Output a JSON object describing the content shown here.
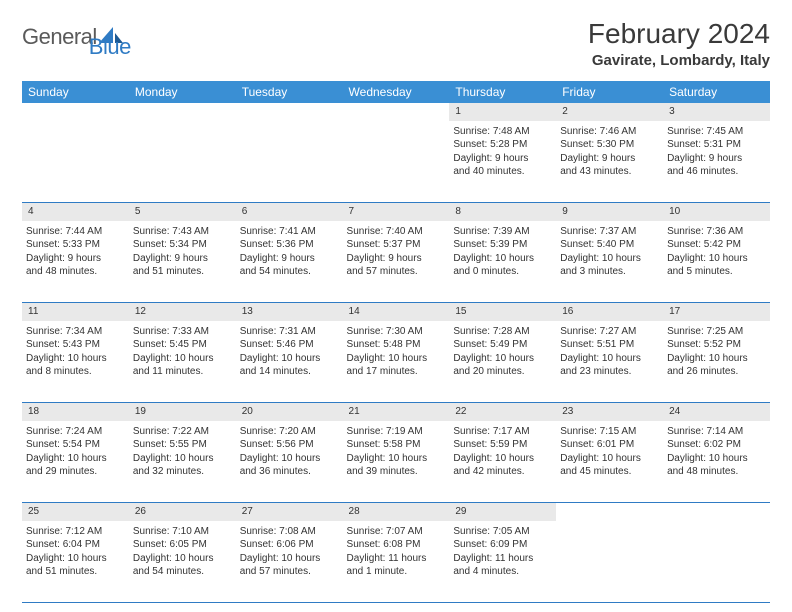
{
  "logo": {
    "general": "General",
    "blue": "Blue"
  },
  "title": "February 2024",
  "location": "Gavirate, Lombardy, Italy",
  "header_bg": "#3a8fd4",
  "daynum_bg": "#e9e9e9",
  "border_color": "#2f7bc4",
  "weekdays": [
    "Sunday",
    "Monday",
    "Tuesday",
    "Wednesday",
    "Thursday",
    "Friday",
    "Saturday"
  ],
  "weeks": [
    [
      null,
      null,
      null,
      null,
      {
        "n": "1",
        "sr": "Sunrise: 7:48 AM",
        "ss": "Sunset: 5:28 PM",
        "d1": "Daylight: 9 hours",
        "d2": "and 40 minutes."
      },
      {
        "n": "2",
        "sr": "Sunrise: 7:46 AM",
        "ss": "Sunset: 5:30 PM",
        "d1": "Daylight: 9 hours",
        "d2": "and 43 minutes."
      },
      {
        "n": "3",
        "sr": "Sunrise: 7:45 AM",
        "ss": "Sunset: 5:31 PM",
        "d1": "Daylight: 9 hours",
        "d2": "and 46 minutes."
      }
    ],
    [
      {
        "n": "4",
        "sr": "Sunrise: 7:44 AM",
        "ss": "Sunset: 5:33 PM",
        "d1": "Daylight: 9 hours",
        "d2": "and 48 minutes."
      },
      {
        "n": "5",
        "sr": "Sunrise: 7:43 AM",
        "ss": "Sunset: 5:34 PM",
        "d1": "Daylight: 9 hours",
        "d2": "and 51 minutes."
      },
      {
        "n": "6",
        "sr": "Sunrise: 7:41 AM",
        "ss": "Sunset: 5:36 PM",
        "d1": "Daylight: 9 hours",
        "d2": "and 54 minutes."
      },
      {
        "n": "7",
        "sr": "Sunrise: 7:40 AM",
        "ss": "Sunset: 5:37 PM",
        "d1": "Daylight: 9 hours",
        "d2": "and 57 minutes."
      },
      {
        "n": "8",
        "sr": "Sunrise: 7:39 AM",
        "ss": "Sunset: 5:39 PM",
        "d1": "Daylight: 10 hours",
        "d2": "and 0 minutes."
      },
      {
        "n": "9",
        "sr": "Sunrise: 7:37 AM",
        "ss": "Sunset: 5:40 PM",
        "d1": "Daylight: 10 hours",
        "d2": "and 3 minutes."
      },
      {
        "n": "10",
        "sr": "Sunrise: 7:36 AM",
        "ss": "Sunset: 5:42 PM",
        "d1": "Daylight: 10 hours",
        "d2": "and 5 minutes."
      }
    ],
    [
      {
        "n": "11",
        "sr": "Sunrise: 7:34 AM",
        "ss": "Sunset: 5:43 PM",
        "d1": "Daylight: 10 hours",
        "d2": "and 8 minutes."
      },
      {
        "n": "12",
        "sr": "Sunrise: 7:33 AM",
        "ss": "Sunset: 5:45 PM",
        "d1": "Daylight: 10 hours",
        "d2": "and 11 minutes."
      },
      {
        "n": "13",
        "sr": "Sunrise: 7:31 AM",
        "ss": "Sunset: 5:46 PM",
        "d1": "Daylight: 10 hours",
        "d2": "and 14 minutes."
      },
      {
        "n": "14",
        "sr": "Sunrise: 7:30 AM",
        "ss": "Sunset: 5:48 PM",
        "d1": "Daylight: 10 hours",
        "d2": "and 17 minutes."
      },
      {
        "n": "15",
        "sr": "Sunrise: 7:28 AM",
        "ss": "Sunset: 5:49 PM",
        "d1": "Daylight: 10 hours",
        "d2": "and 20 minutes."
      },
      {
        "n": "16",
        "sr": "Sunrise: 7:27 AM",
        "ss": "Sunset: 5:51 PM",
        "d1": "Daylight: 10 hours",
        "d2": "and 23 minutes."
      },
      {
        "n": "17",
        "sr": "Sunrise: 7:25 AM",
        "ss": "Sunset: 5:52 PM",
        "d1": "Daylight: 10 hours",
        "d2": "and 26 minutes."
      }
    ],
    [
      {
        "n": "18",
        "sr": "Sunrise: 7:24 AM",
        "ss": "Sunset: 5:54 PM",
        "d1": "Daylight: 10 hours",
        "d2": "and 29 minutes."
      },
      {
        "n": "19",
        "sr": "Sunrise: 7:22 AM",
        "ss": "Sunset: 5:55 PM",
        "d1": "Daylight: 10 hours",
        "d2": "and 32 minutes."
      },
      {
        "n": "20",
        "sr": "Sunrise: 7:20 AM",
        "ss": "Sunset: 5:56 PM",
        "d1": "Daylight: 10 hours",
        "d2": "and 36 minutes."
      },
      {
        "n": "21",
        "sr": "Sunrise: 7:19 AM",
        "ss": "Sunset: 5:58 PM",
        "d1": "Daylight: 10 hours",
        "d2": "and 39 minutes."
      },
      {
        "n": "22",
        "sr": "Sunrise: 7:17 AM",
        "ss": "Sunset: 5:59 PM",
        "d1": "Daylight: 10 hours",
        "d2": "and 42 minutes."
      },
      {
        "n": "23",
        "sr": "Sunrise: 7:15 AM",
        "ss": "Sunset: 6:01 PM",
        "d1": "Daylight: 10 hours",
        "d2": "and 45 minutes."
      },
      {
        "n": "24",
        "sr": "Sunrise: 7:14 AM",
        "ss": "Sunset: 6:02 PM",
        "d1": "Daylight: 10 hours",
        "d2": "and 48 minutes."
      }
    ],
    [
      {
        "n": "25",
        "sr": "Sunrise: 7:12 AM",
        "ss": "Sunset: 6:04 PM",
        "d1": "Daylight: 10 hours",
        "d2": "and 51 minutes."
      },
      {
        "n": "26",
        "sr": "Sunrise: 7:10 AM",
        "ss": "Sunset: 6:05 PM",
        "d1": "Daylight: 10 hours",
        "d2": "and 54 minutes."
      },
      {
        "n": "27",
        "sr": "Sunrise: 7:08 AM",
        "ss": "Sunset: 6:06 PM",
        "d1": "Daylight: 10 hours",
        "d2": "and 57 minutes."
      },
      {
        "n": "28",
        "sr": "Sunrise: 7:07 AM",
        "ss": "Sunset: 6:08 PM",
        "d1": "Daylight: 11 hours",
        "d2": "and 1 minute."
      },
      {
        "n": "29",
        "sr": "Sunrise: 7:05 AM",
        "ss": "Sunset: 6:09 PM",
        "d1": "Daylight: 11 hours",
        "d2": "and 4 minutes."
      },
      null,
      null
    ]
  ]
}
